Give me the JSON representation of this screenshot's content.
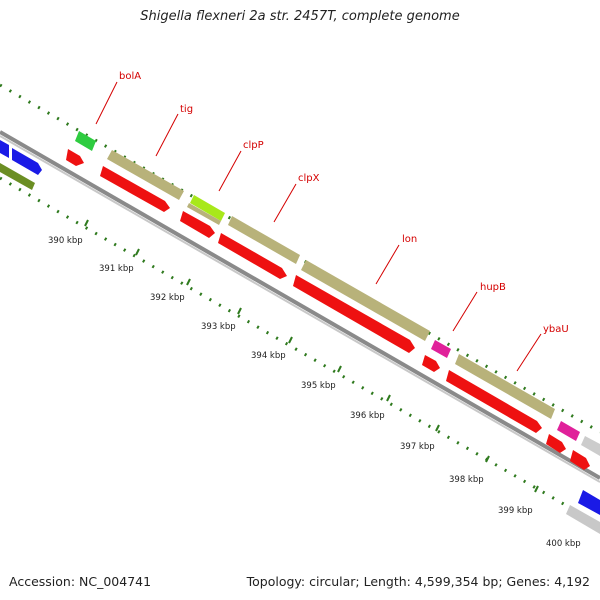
{
  "title": "Shigella flexneri 2a str. 2457T, complete genome",
  "footer": {
    "accession": "Accession: NC_004741",
    "summary": "Topology: circular; Length: 4,599,354 bp; Genes: 4,192"
  },
  "colors": {
    "backbone": "#8c8c8c",
    "ticks": "#2f7a1e",
    "label_text": "#d40000",
    "leader_line": "#d40000"
  },
  "tick_labels": [
    "390 kbp",
    "391 kbp",
    "392 kbp",
    "393 kbp",
    "394 kbp",
    "395 kbp",
    "396 kbp",
    "397 kbp",
    "398 kbp",
    "399 kbp",
    "400 kbp"
  ],
  "genes": [
    {
      "name": "bolA",
      "color": "#2ecc40"
    },
    {
      "name": "tig",
      "color": "#b8b27a"
    },
    {
      "name": "clpP",
      "color": "#a8e81a"
    },
    {
      "name": "clpX",
      "color": "#b8b27a"
    },
    {
      "name": "lon",
      "color": "#b8b27a"
    },
    {
      "name": "hupB",
      "color": "#e0219a"
    },
    {
      "name": "ybaU",
      "color": "#b8b27a"
    }
  ]
}
